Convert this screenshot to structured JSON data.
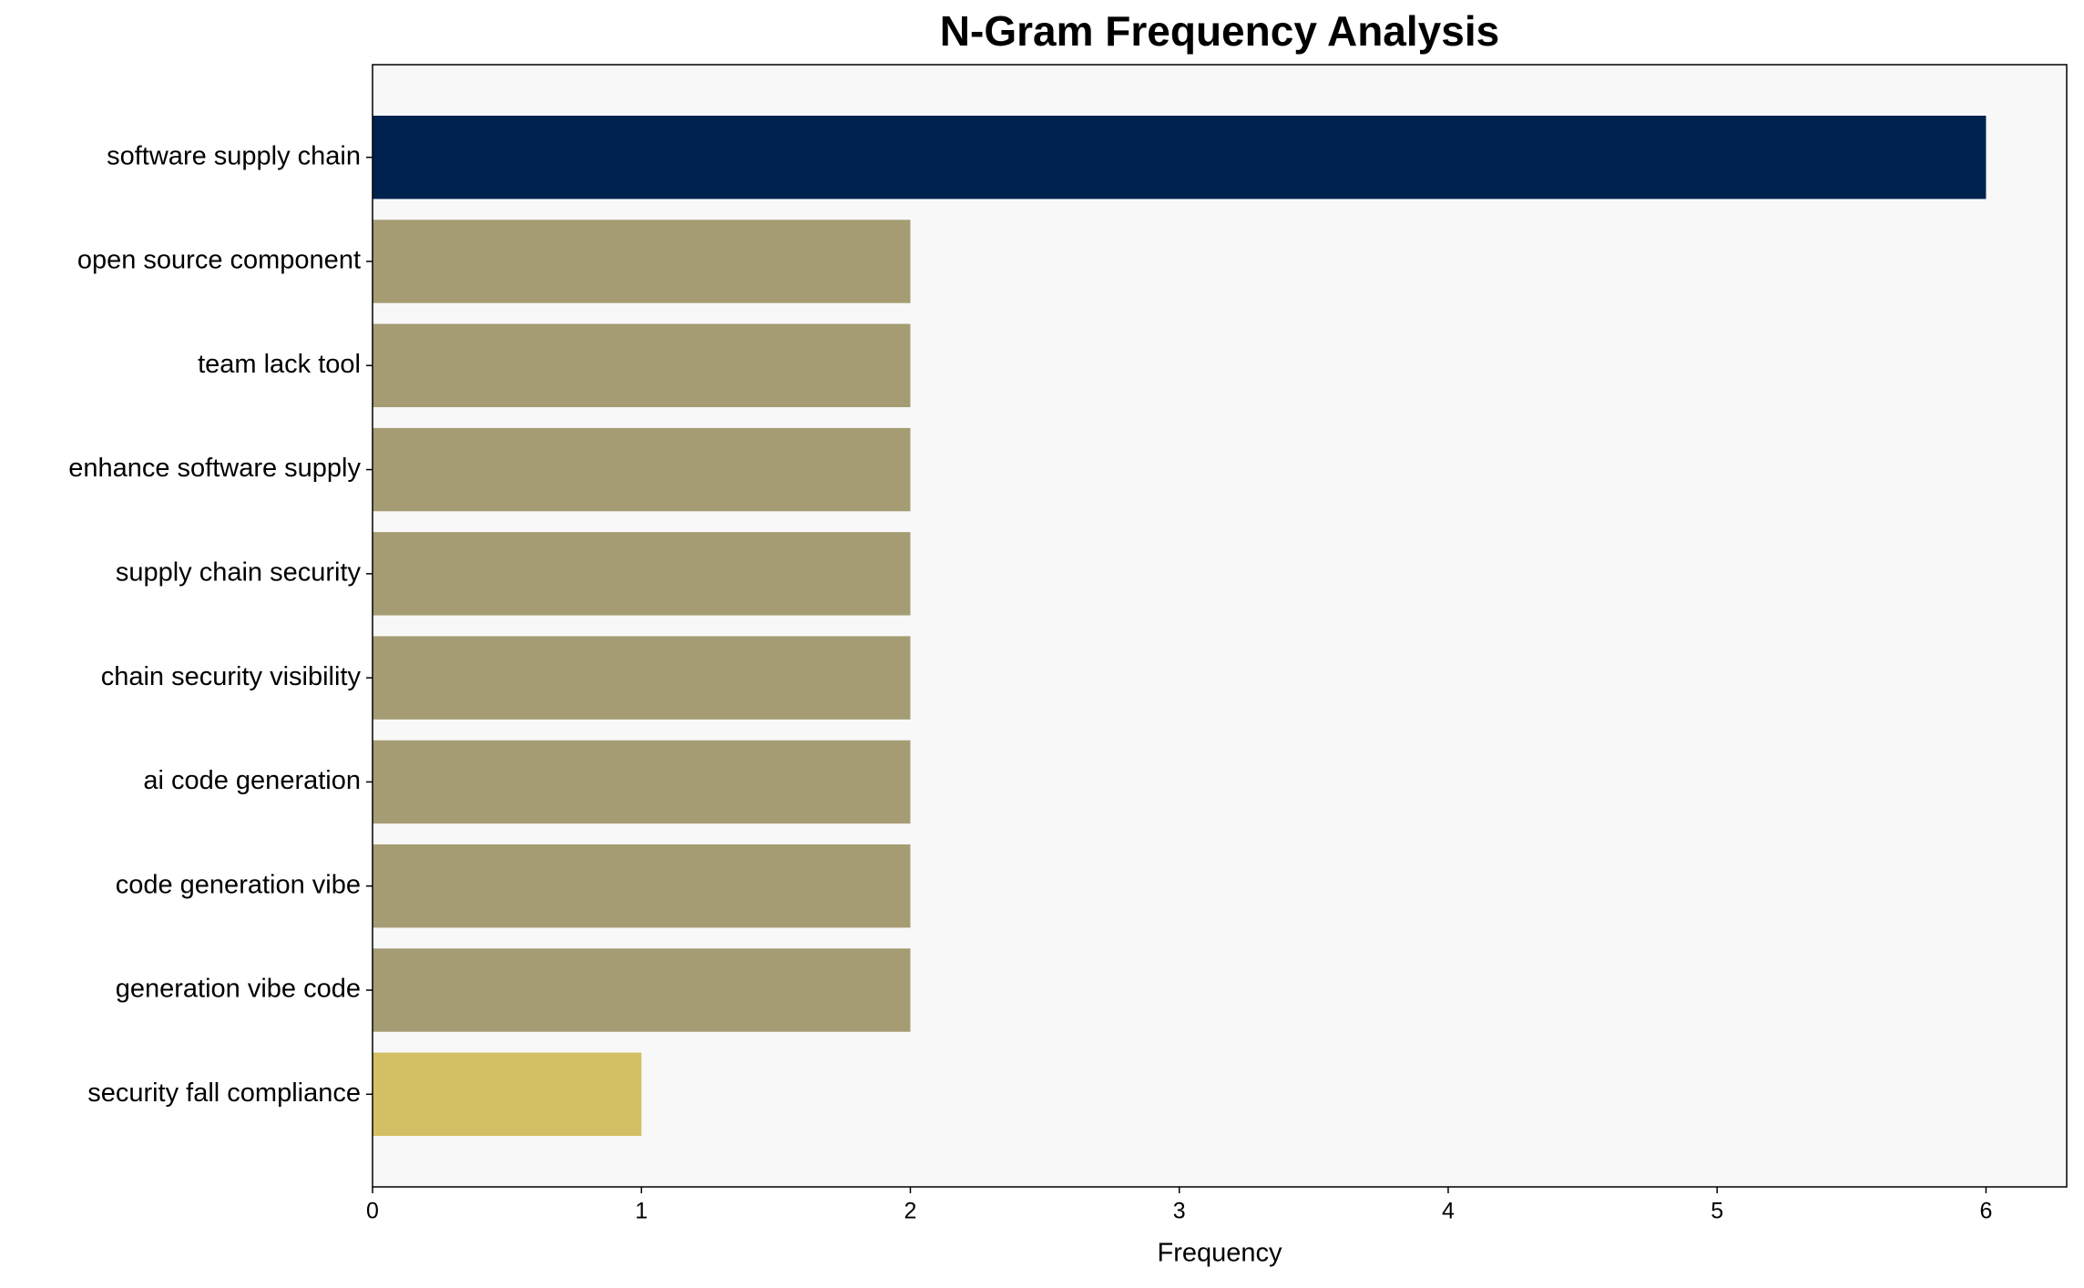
{
  "chart_data": {
    "type": "barh",
    "title": "N-Gram Frequency Analysis",
    "x_label": "Frequency",
    "categories": [
      "software supply chain",
      "open source component",
      "team lack tool",
      "enhance software supply",
      "supply chain security",
      "chain security visibility",
      "ai code generation",
      "code generation vibe",
      "generation vibe code",
      "security fall compliance"
    ],
    "values": [
      6,
      2,
      2,
      2,
      2,
      2,
      2,
      2,
      2,
      1
    ],
    "colors": [
      "#00224e",
      "#a59c74",
      "#a59c74",
      "#a59c74",
      "#a59c74",
      "#a59c74",
      "#a59c74",
      "#a59c74",
      "#a59c74",
      "#d3c064"
    ],
    "xlim": [
      0,
      6.3
    ],
    "xticks": [
      0,
      1,
      2,
      3,
      4,
      5,
      6
    ]
  }
}
